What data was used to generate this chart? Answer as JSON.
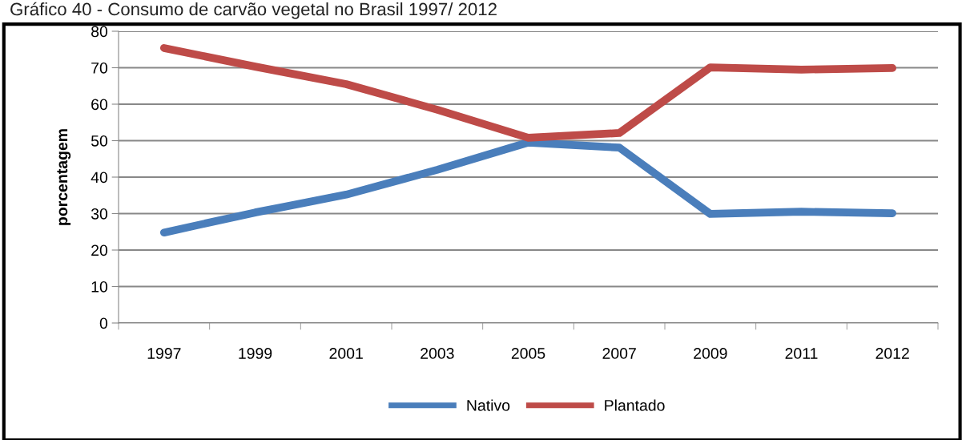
{
  "chart_data": {
    "type": "line",
    "title": "Gráfico 40 - Consumo de carvão vegetal no Brasil 1997/ 2012",
    "ylabel": "porcentagem",
    "categories": [
      "1997",
      "1999",
      "2001",
      "2003",
      "2005",
      "2007",
      "2009",
      "2011",
      "2012"
    ],
    "series": [
      {
        "name": "Nativo",
        "color": "#4a7ebb",
        "values": [
          24.8,
          30.3,
          35.2,
          42,
          49.5,
          48.1,
          29.9,
          30.5,
          30.1
        ]
      },
      {
        "name": "Plantado",
        "color": "#be4b48",
        "values": [
          75.4,
          70.3,
          65.5,
          58.5,
          50.8,
          52.1,
          70.1,
          69.5,
          69.9
        ]
      }
    ],
    "ylim": [
      0,
      80
    ],
    "yticks": [
      0,
      10,
      20,
      30,
      40,
      50,
      60,
      70,
      80
    ],
    "grid": "y",
    "legend": "bottom",
    "marker": "none",
    "line_style": "solid"
  }
}
